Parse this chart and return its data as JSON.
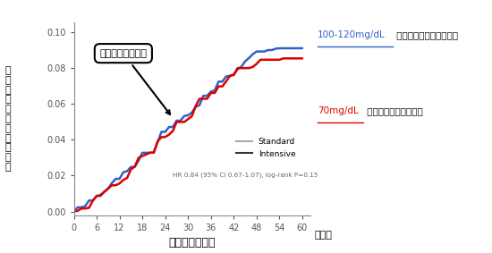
{
  "xlabel": "経過観察の期間",
  "ylabel": "心\n筋\n梗\n塞\nの\n起\nこ\nり\nや\nす\nさ",
  "xunit": "（月）",
  "xlim": [
    0,
    62
  ],
  "ylim": [
    -0.002,
    0.105
  ],
  "xticks": [
    0,
    6,
    12,
    18,
    24,
    30,
    36,
    42,
    48,
    54,
    60
  ],
  "yticks": [
    0.0,
    0.02,
    0.04,
    0.06,
    0.08,
    0.1
  ],
  "blue_label_part1": "100-120mg/dL",
  "blue_label_part2": " まで標準的に下げた場合",
  "red_label_part1": "70mg/dL",
  "red_label_part2": " まで厳しく下げた場合",
  "legend_standard": "Standard",
  "legend_intensive": "Intensive",
  "hr_text": "HR 0.84 (95% CI 0.67-1.07), log-rank P=0.15",
  "callout_text": "発症率に差がない",
  "blue_color": "#3060C8",
  "red_color": "#DD0000",
  "gray_color": "#999999",
  "background_color": "#FFFFFF",
  "x_blue": [
    0,
    1,
    2,
    3,
    4,
    5,
    6,
    7,
    8,
    9,
    10,
    11,
    12,
    13,
    14,
    15,
    16,
    17,
    18,
    19,
    20,
    21,
    22,
    23,
    24,
    25,
    26,
    27,
    28,
    29,
    30,
    31,
    32,
    33,
    34,
    35,
    36,
    37,
    38,
    39,
    40,
    41,
    42,
    43,
    44,
    45,
    46,
    47,
    48,
    49,
    50,
    51,
    52,
    53,
    54,
    55,
    56,
    57,
    58,
    59,
    60
  ],
  "y_blue": [
    0.0,
    0.001,
    0.002,
    0.003,
    0.005,
    0.006,
    0.008,
    0.009,
    0.011,
    0.013,
    0.015,
    0.016,
    0.018,
    0.02,
    0.022,
    0.024,
    0.026,
    0.028,
    0.03,
    0.032,
    0.034,
    0.036,
    0.038,
    0.04,
    0.042,
    0.044,
    0.046,
    0.048,
    0.05,
    0.052,
    0.054,
    0.056,
    0.058,
    0.06,
    0.062,
    0.064,
    0.066,
    0.068,
    0.07,
    0.072,
    0.074,
    0.076,
    0.078,
    0.08,
    0.082,
    0.084,
    0.086,
    0.087,
    0.088,
    0.0885,
    0.089,
    0.0893,
    0.0893,
    0.0893,
    0.0893,
    0.0893,
    0.0893,
    0.0893,
    0.0893,
    0.0893,
    0.0893
  ],
  "x_red": [
    0,
    1,
    2,
    3,
    4,
    5,
    6,
    7,
    8,
    9,
    10,
    11,
    12,
    13,
    14,
    15,
    16,
    17,
    18,
    19,
    20,
    21,
    22,
    23,
    24,
    25,
    26,
    27,
    28,
    29,
    30,
    31,
    32,
    33,
    34,
    35,
    36,
    37,
    38,
    39,
    40,
    41,
    42,
    43,
    44,
    45,
    46,
    47,
    48,
    49,
    50,
    51,
    52,
    53,
    54,
    55,
    56,
    57,
    58,
    59,
    60
  ],
  "y_red": [
    0.0,
    0.0,
    0.001,
    0.002,
    0.004,
    0.005,
    0.007,
    0.008,
    0.01,
    0.012,
    0.014,
    0.015,
    0.017,
    0.019,
    0.021,
    0.023,
    0.025,
    0.027,
    0.029,
    0.031,
    0.033,
    0.035,
    0.037,
    0.039,
    0.041,
    0.043,
    0.045,
    0.047,
    0.049,
    0.051,
    0.053,
    0.055,
    0.057,
    0.059,
    0.061,
    0.063,
    0.065,
    0.067,
    0.069,
    0.071,
    0.073,
    0.075,
    0.077,
    0.077,
    0.077,
    0.077,
    0.077,
    0.078,
    0.08,
    0.082,
    0.082,
    0.082,
    0.0825,
    0.0825,
    0.0825,
    0.0825,
    0.0825,
    0.0825,
    0.0825,
    0.0825,
    0.0825
  ]
}
